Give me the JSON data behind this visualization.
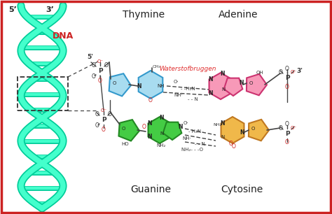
{
  "bg": "#ffffff",
  "border": "#cc2222",
  "dna_fill": "#44ffcc",
  "dna_edge": "#00cc99",
  "dna_label": "DNA",
  "dna_label_color": "#cc2222",
  "lbl_5_x": "5’",
  "lbl_3_x": "3’",
  "thymine_lbl": "Thymine",
  "adenine_lbl": "Adenine",
  "guanine_lbl": "Guanine",
  "cytosine_lbl": "Cytosine",
  "waterstof_lbl": "Waterstofbruggen",
  "waterstof_color": "#e03030",
  "thy_fill": "#a8dcf0",
  "thy_edge": "#3399cc",
  "ade_fill": "#f799b8",
  "ade_edge": "#cc3370",
  "gua_fill": "#44cc44",
  "gua_edge": "#228822",
  "cyt_fill": "#f0b84a",
  "cyt_edge": "#c07820",
  "text_dark": "#222222",
  "bond_gray": "#444444",
  "red_atom": "#cc2222"
}
